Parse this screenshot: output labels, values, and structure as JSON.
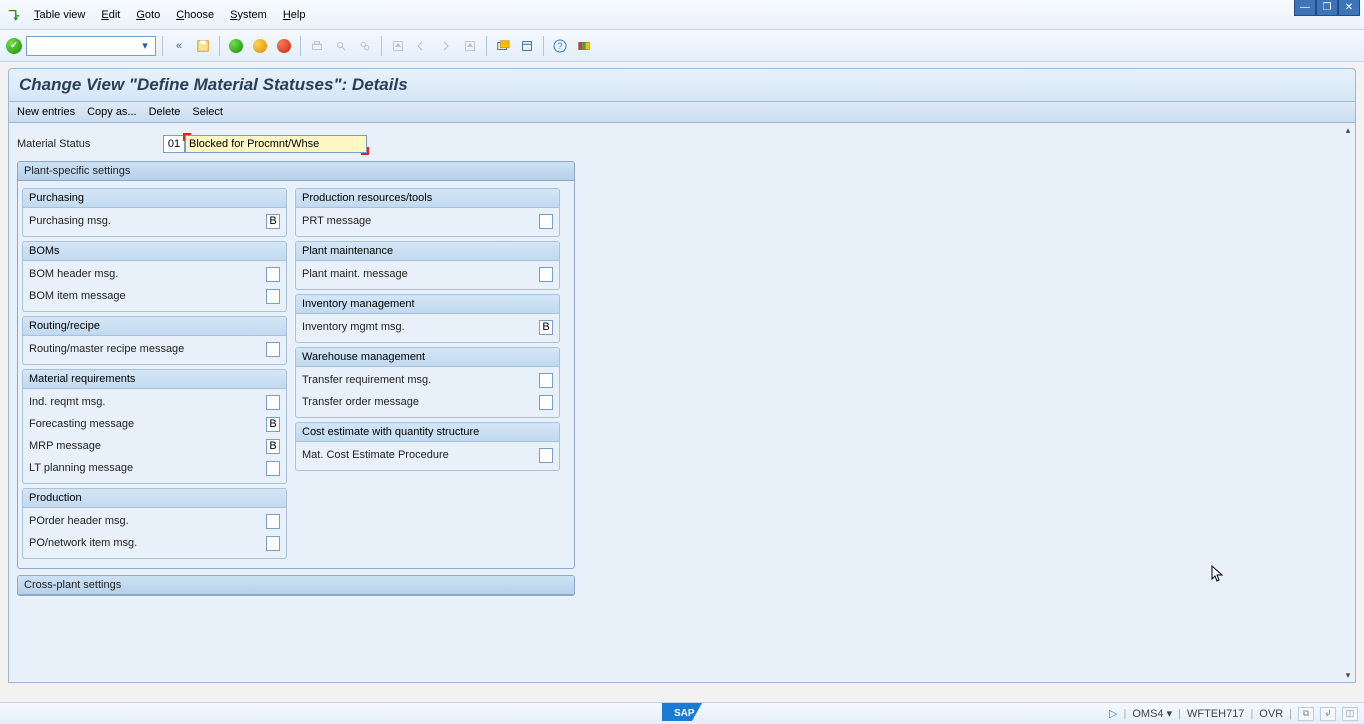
{
  "menu": {
    "items": [
      {
        "pre": "T",
        "rest": "able view"
      },
      {
        "pre": "E",
        "rest": "dit"
      },
      {
        "pre": "G",
        "rest": "oto"
      },
      {
        "pre": "C",
        "rest": "hoose"
      },
      {
        "pre": "S",
        "rest": "ystem"
      },
      {
        "pre": "H",
        "rest": "elp"
      }
    ]
  },
  "title": "Change View \"Define Material Statuses\": Details",
  "subtoolbar": [
    "New entries",
    "Copy as...",
    "Delete",
    "Select"
  ],
  "material_status": {
    "label": "Material Status",
    "code": "01",
    "desc": "Blocked for Procmnt/Whse"
  },
  "plant_settings_title": "Plant-specific settings",
  "cross_plant_title": "Cross-plant settings",
  "left_groups": [
    {
      "title": "Purchasing",
      "rows": [
        {
          "label": "Purchasing msg.",
          "val": "B"
        }
      ]
    },
    {
      "title": "BOMs",
      "rows": [
        {
          "label": "BOM header msg.",
          "val": ""
        },
        {
          "label": "BOM item message",
          "val": ""
        }
      ]
    },
    {
      "title": "Routing/recipe",
      "rows": [
        {
          "label": "Routing/master recipe message",
          "val": ""
        }
      ]
    },
    {
      "title": "Material requirements",
      "rows": [
        {
          "label": "Ind. reqmt msg.",
          "val": ""
        },
        {
          "label": "Forecasting message",
          "val": "B"
        },
        {
          "label": "MRP message",
          "val": "B"
        },
        {
          "label": "LT planning message",
          "val": ""
        }
      ]
    },
    {
      "title": "Production",
      "rows": [
        {
          "label": "POrder header msg.",
          "val": ""
        },
        {
          "label": "PO/network item msg.",
          "val": ""
        }
      ]
    }
  ],
  "right_groups": [
    {
      "title": "Production resources/tools",
      "rows": [
        {
          "label": "PRT message",
          "val": ""
        }
      ]
    },
    {
      "title": "Plant maintenance",
      "rows": [
        {
          "label": "Plant maint. message",
          "val": ""
        }
      ]
    },
    {
      "title": "Inventory management",
      "rows": [
        {
          "label": "Inventory mgmt msg.",
          "val": "B"
        }
      ]
    },
    {
      "title": "Warehouse management",
      "rows": [
        {
          "label": "Transfer requirement msg.",
          "val": ""
        },
        {
          "label": "Transfer order message",
          "val": ""
        }
      ]
    },
    {
      "title": "Cost estimate with quantity structure",
      "rows": [
        {
          "label": "Mat. Cost Estimate Procedure",
          "val": ""
        }
      ]
    }
  ],
  "status": {
    "tx": "OMS4",
    "server": "WFTEH717",
    "mode": "OVR"
  },
  "colors": {
    "accent": "#3d74b8",
    "panel_bg": "#e8f0f9",
    "highlight": "#fff8c4"
  }
}
